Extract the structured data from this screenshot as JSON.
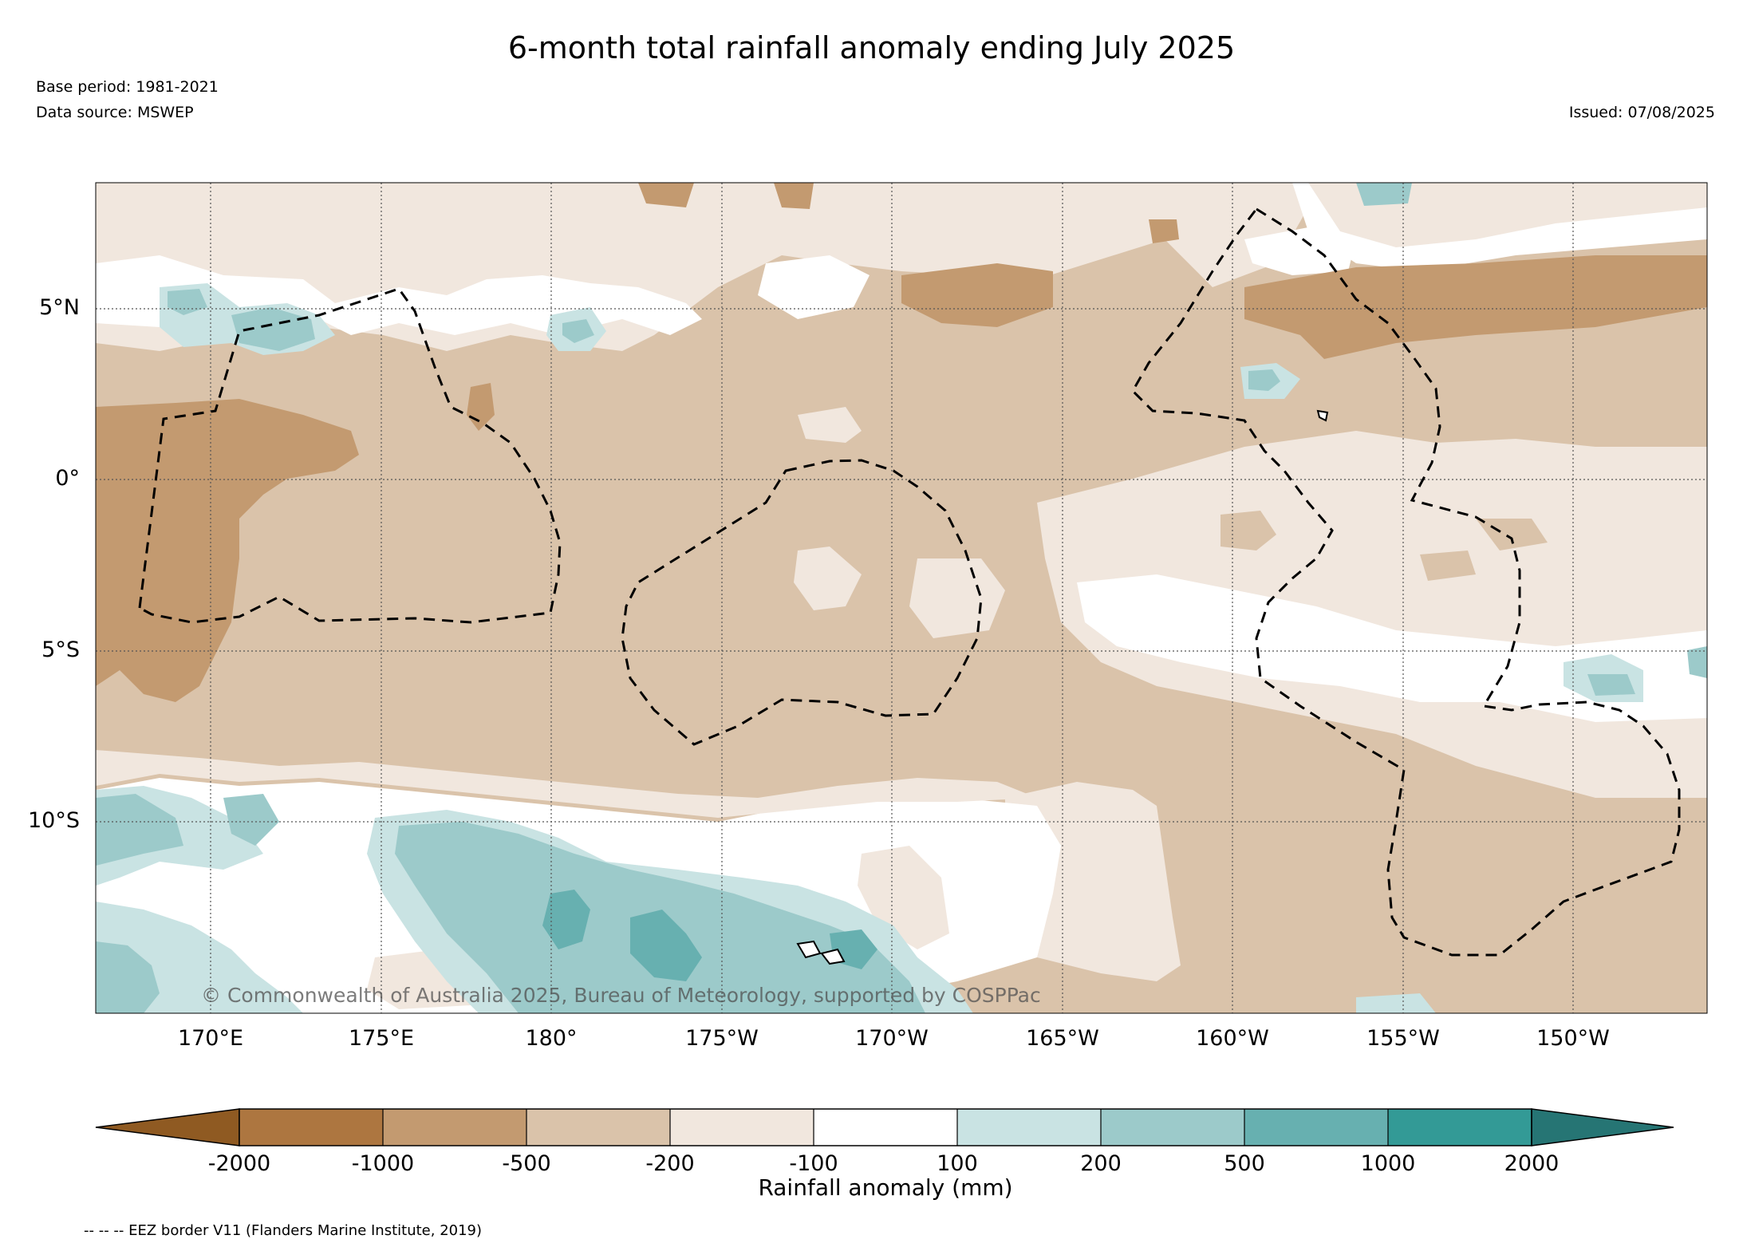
{
  "title": "6-month total rainfall anomaly ending July 2025",
  "base_period": "Base period: 1981-2021",
  "data_source": "Data source: MSWEP",
  "issued": "Issued: 07/08/2025",
  "copyright": "© Commonwealth of Australia 2025, Bureau of Meteorology, supported by COSPPac",
  "latitude_labels": [
    "5°N",
    "0°",
    "5°S",
    "10°S"
  ],
  "longitude_labels": [
    "170°E",
    "175°E",
    "180°",
    "175°W",
    "170°W",
    "165°W",
    "160°W",
    "155°W",
    "150°W"
  ],
  "colorbar": {
    "title": "Rainfall anomaly (mm)",
    "tick_labels": [
      "-2000",
      "-1000",
      "-500",
      "-200",
      "-100",
      "100",
      "200",
      "500",
      "1000",
      "2000"
    ],
    "colors": [
      "#8f5a22",
      "#ad7640",
      "#c39a70",
      "#dac3aa",
      "#f1e7de",
      "#ffffff",
      "#c9e3e3",
      "#9ccaca",
      "#67b0b0",
      "#339a96",
      "#267574"
    ]
  },
  "legend_note": "-- -- -- EEZ border V11 (Flanders Marine Institute, 2019)"
}
